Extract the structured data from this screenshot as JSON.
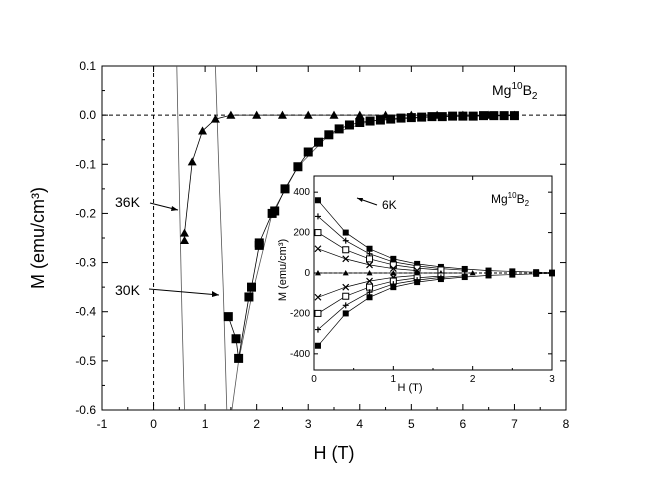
{
  "chart_data": [
    {
      "type": "scatter",
      "xlabel": "H (T)",
      "ylabel": "M (emu/cm³)",
      "xlim": [
        -1,
        8
      ],
      "ylim": [
        -0.6,
        0.1
      ],
      "xticks": [
        "-1",
        "0",
        "1",
        "2",
        "3",
        "4",
        "5",
        "6",
        "7",
        "8"
      ],
      "yticks": [
        "-0.6",
        "-0.5",
        "-0.4",
        "-0.3",
        "-0.2",
        "-0.1",
        "0.0",
        "0.1"
      ],
      "sample_label_main": "Mg",
      "sample_label_sup": "10",
      "sample_label_tail": "B",
      "sample_label_sub": "2",
      "annotations": [
        "36K",
        "30K"
      ],
      "grid": false,
      "legend": "none",
      "series": [
        {
          "name": "36K",
          "marker": "triangle",
          "x": [
            0.6,
            0.6,
            0.75,
            0.95,
            1.2,
            1.5,
            2.0,
            2.5,
            3.0,
            3.5,
            4.0,
            4.5,
            5.0,
            5.5,
            6.0,
            6.5,
            7.0
          ],
          "y": [
            -0.255,
            -0.24,
            -0.095,
            -0.032,
            -0.008,
            0.0,
            0.0,
            0.0,
            0.0,
            0.0,
            0.0,
            0.0,
            0.0,
            0.0,
            0.0,
            0.0,
            0.0
          ]
        },
        {
          "name": "30K",
          "marker": "square",
          "x": [
            1.45,
            1.6,
            1.65,
            1.85,
            1.9,
            2.05,
            2.05,
            2.3,
            2.35,
            2.55,
            2.8,
            3.0,
            3.2,
            3.4,
            3.6,
            3.8,
            4.0,
            4.2,
            4.4,
            4.6,
            4.8,
            5.0,
            5.2,
            5.4,
            5.6,
            5.8,
            6.0,
            6.2,
            6.4,
            6.6,
            6.8,
            7.0
          ],
          "y": [
            -0.41,
            -0.455,
            -0.495,
            -0.37,
            -0.35,
            -0.265,
            -0.26,
            -0.2,
            -0.195,
            -0.15,
            -0.105,
            -0.075,
            -0.055,
            -0.04,
            -0.028,
            -0.02,
            -0.015,
            -0.012,
            -0.01,
            -0.008,
            -0.006,
            -0.005,
            -0.004,
            -0.003,
            -0.003,
            -0.002,
            -0.002,
            -0.002,
            -0.001,
            -0.001,
            -0.001,
            -0.001
          ]
        }
      ]
    },
    {
      "type": "scatter",
      "xlabel": "H (T)",
      "ylabel": "M (emu/cm³)",
      "xlim": [
        0,
        3
      ],
      "ylim": [
        -480,
        480
      ],
      "xticks": [
        "0",
        "1",
        "2",
        "3"
      ],
      "yticks": [
        "-400",
        "-200",
        "0",
        "200",
        "400"
      ],
      "sample_label_main": "Mg",
      "sample_label_sup": "10",
      "sample_label_tail": "B",
      "sample_label_sub": "2",
      "annotations": [
        "6K"
      ],
      "grid": false,
      "legend": "none",
      "series": [
        {
          "marker": "square",
          "x": [
            0.05,
            0.4,
            0.7,
            1.0,
            1.3,
            1.6,
            1.9,
            2.2,
            2.5,
            2.8,
            3.0
          ],
          "y": [
            360,
            200,
            120,
            70,
            45,
            30,
            20,
            12,
            8,
            4,
            2
          ]
        },
        {
          "marker": "plus",
          "x": [
            0.05,
            0.4,
            0.7,
            1.0,
            1.3,
            1.6,
            1.9
          ],
          "y": [
            280,
            160,
            95,
            55,
            35,
            22,
            14
          ]
        },
        {
          "marker": "open-square",
          "x": [
            0.05,
            0.4,
            0.7,
            1.0,
            1.3,
            1.6
          ],
          "y": [
            200,
            115,
            70,
            40,
            24,
            15
          ]
        },
        {
          "marker": "cross",
          "x": [
            0.05,
            0.4,
            0.7,
            1.0,
            1.3
          ],
          "y": [
            120,
            70,
            40,
            22,
            12
          ]
        },
        {
          "marker": "triangle",
          "x": [
            0.05,
            0.4,
            0.7,
            1.0,
            1.3,
            1.6,
            2.0
          ],
          "y": [
            0,
            0,
            0,
            0,
            0,
            0,
            0
          ]
        },
        {
          "marker": "cross",
          "x": [
            0.05,
            0.4,
            0.7,
            1.0,
            1.3
          ],
          "y": [
            -120,
            -70,
            -40,
            -22,
            -12
          ]
        },
        {
          "marker": "open-square",
          "x": [
            0.05,
            0.4,
            0.7,
            1.0,
            1.3,
            1.6
          ],
          "y": [
            -200,
            -115,
            -70,
            -40,
            -24,
            -15
          ]
        },
        {
          "marker": "plus",
          "x": [
            0.05,
            0.4,
            0.7,
            1.0,
            1.3,
            1.6,
            1.9
          ],
          "y": [
            -280,
            -160,
            -95,
            -55,
            -35,
            -22,
            -14
          ]
        },
        {
          "marker": "square",
          "x": [
            0.05,
            0.4,
            0.7,
            1.0,
            1.3,
            1.6,
            1.9,
            2.2,
            2.5,
            2.8,
            3.0
          ],
          "y": [
            -360,
            -200,
            -120,
            -70,
            -45,
            -30,
            -20,
            -12,
            -8,
            -4,
            -2
          ]
        }
      ]
    }
  ]
}
